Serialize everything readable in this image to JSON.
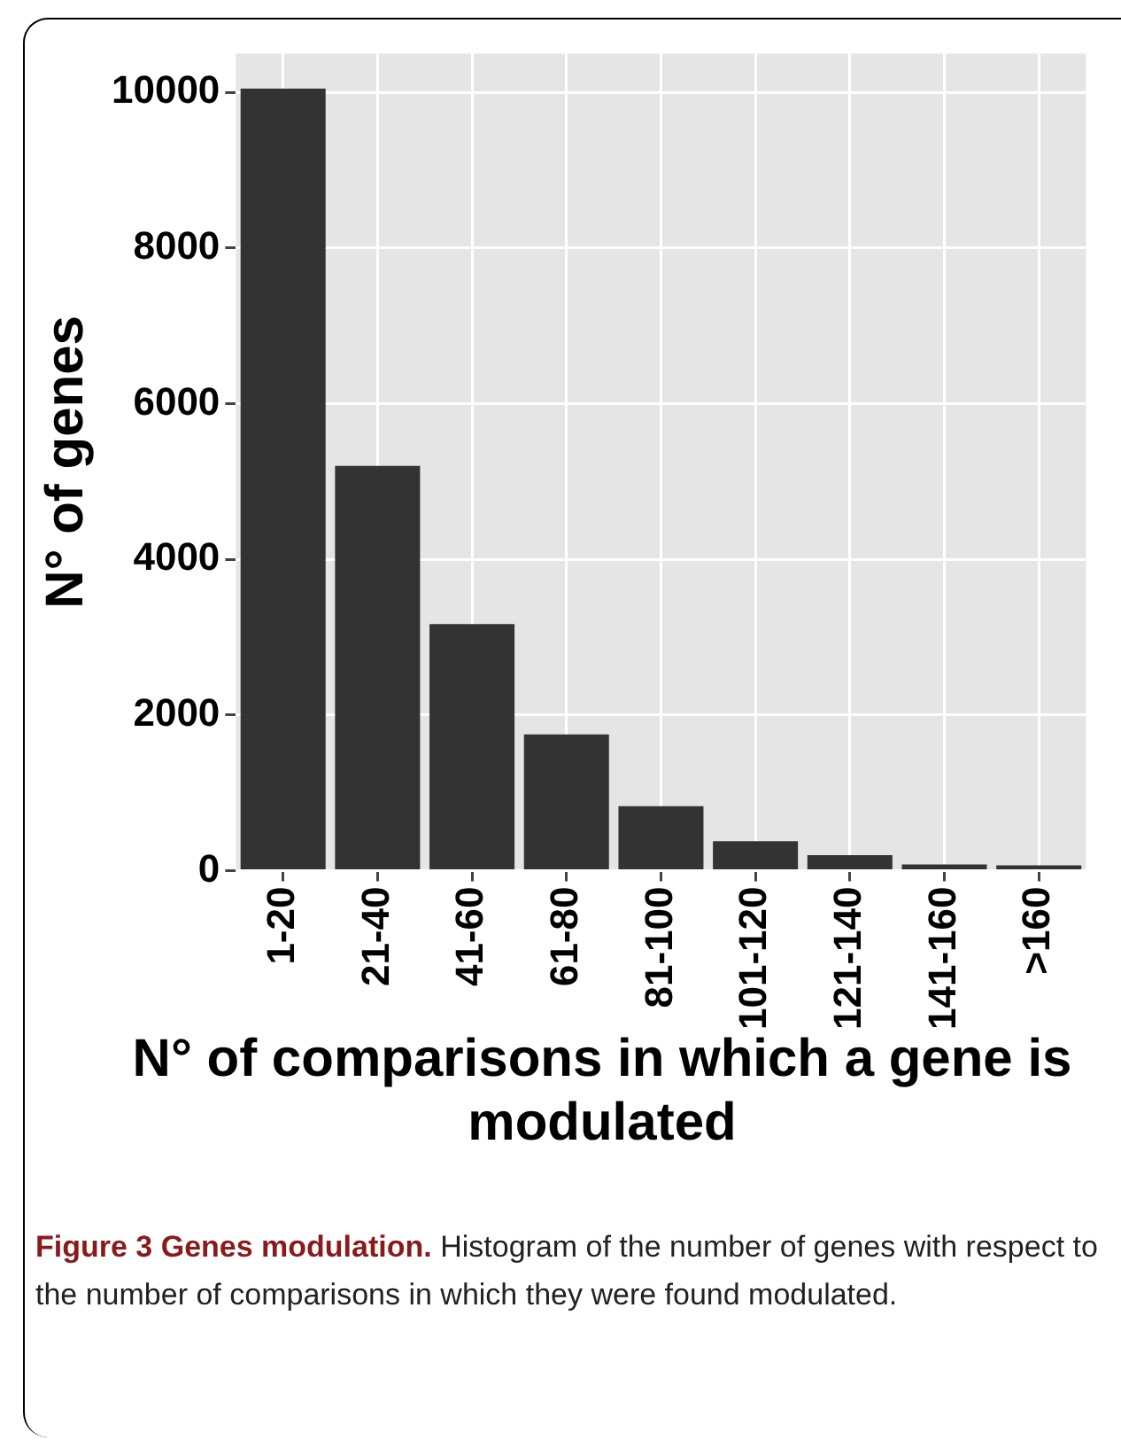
{
  "chart_data": {
    "type": "bar",
    "ylabel": "N° of genes",
    "xlabel": "N° of comparisons in which a gene is modulated",
    "categories": [
      "1-20",
      "21-40",
      "41-60",
      "61-80",
      "81-100",
      "101-120",
      "121-140",
      "141-160",
      ">160"
    ],
    "values": [
      10050,
      5200,
      3170,
      1750,
      830,
      380,
      200,
      80,
      70
    ],
    "color": "#333333",
    "ylim": [
      0,
      10500
    ],
    "yticks": [
      0,
      2000,
      4000,
      6000,
      8000,
      10000
    ],
    "grid": true,
    "legend": false,
    "annotations": [
      "Figure 3 Genes modulation.",
      "Histogram of the number of genes with respect to the number of comparisons in which they were found modulated."
    ]
  }
}
